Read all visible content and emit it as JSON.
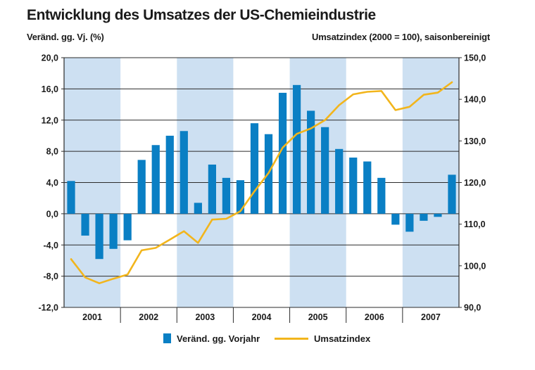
{
  "chart_data": {
    "type": "bar+line",
    "title": "Entwicklung des Umsatzes der US-Chemieindustrie",
    "left_axis_label": "Veränd. gg. Vj. (%)",
    "right_axis_label": "Umsatzindex (2000 = 100), saisonbereinigt",
    "years": [
      "2001",
      "2002",
      "2003",
      "2004",
      "2005",
      "2006",
      "2007"
    ],
    "shaded_years": [
      "2001",
      "2003",
      "2005",
      "2007"
    ],
    "left_ylim": [
      -12,
      20
    ],
    "left_ticks": [
      "20,0",
      "16,0",
      "12,0",
      "8,0",
      "4,0",
      "0,0",
      "-4,0",
      "-8,0",
      "-12,0"
    ],
    "right_ylim": [
      90,
      150
    ],
    "right_ticks": [
      "150,0",
      "140,0",
      "130,0",
      "120,0",
      "110,0",
      "100,0",
      "90,0"
    ],
    "grid": true,
    "series": [
      {
        "name": "Veränd. gg. Vorjahr",
        "type": "bar",
        "axis": "left",
        "values": [
          4.2,
          -2.8,
          -5.8,
          -4.5,
          -3.4,
          6.9,
          8.8,
          10.0,
          10.6,
          1.4,
          6.3,
          4.6,
          4.3,
          11.6,
          10.2,
          15.5,
          16.5,
          13.2,
          11.1,
          8.3,
          7.2,
          6.7,
          4.6,
          -1.4,
          -2.3,
          -0.9,
          -0.4,
          5.0
        ]
      },
      {
        "name": "Umsatzindex",
        "type": "line",
        "axis": "right",
        "values": [
          101.6,
          97.2,
          95.8,
          96.9,
          97.9,
          103.7,
          104.3,
          106.3,
          108.3,
          105.5,
          111.1,
          111.3,
          113.1,
          117.9,
          122.3,
          128.4,
          131.7,
          133.0,
          135.0,
          138.6,
          141.2,
          141.8,
          142.0,
          137.4,
          138.2,
          141.1,
          141.6,
          144.1
        ]
      }
    ],
    "colors": {
      "bar": "#0a7fc4",
      "line": "#f2b51c",
      "shade": "#cde0f2"
    },
    "legend": {
      "bar_label": "Veränd. gg. Vorjahr",
      "line_label": "Umsatzindex"
    }
  }
}
